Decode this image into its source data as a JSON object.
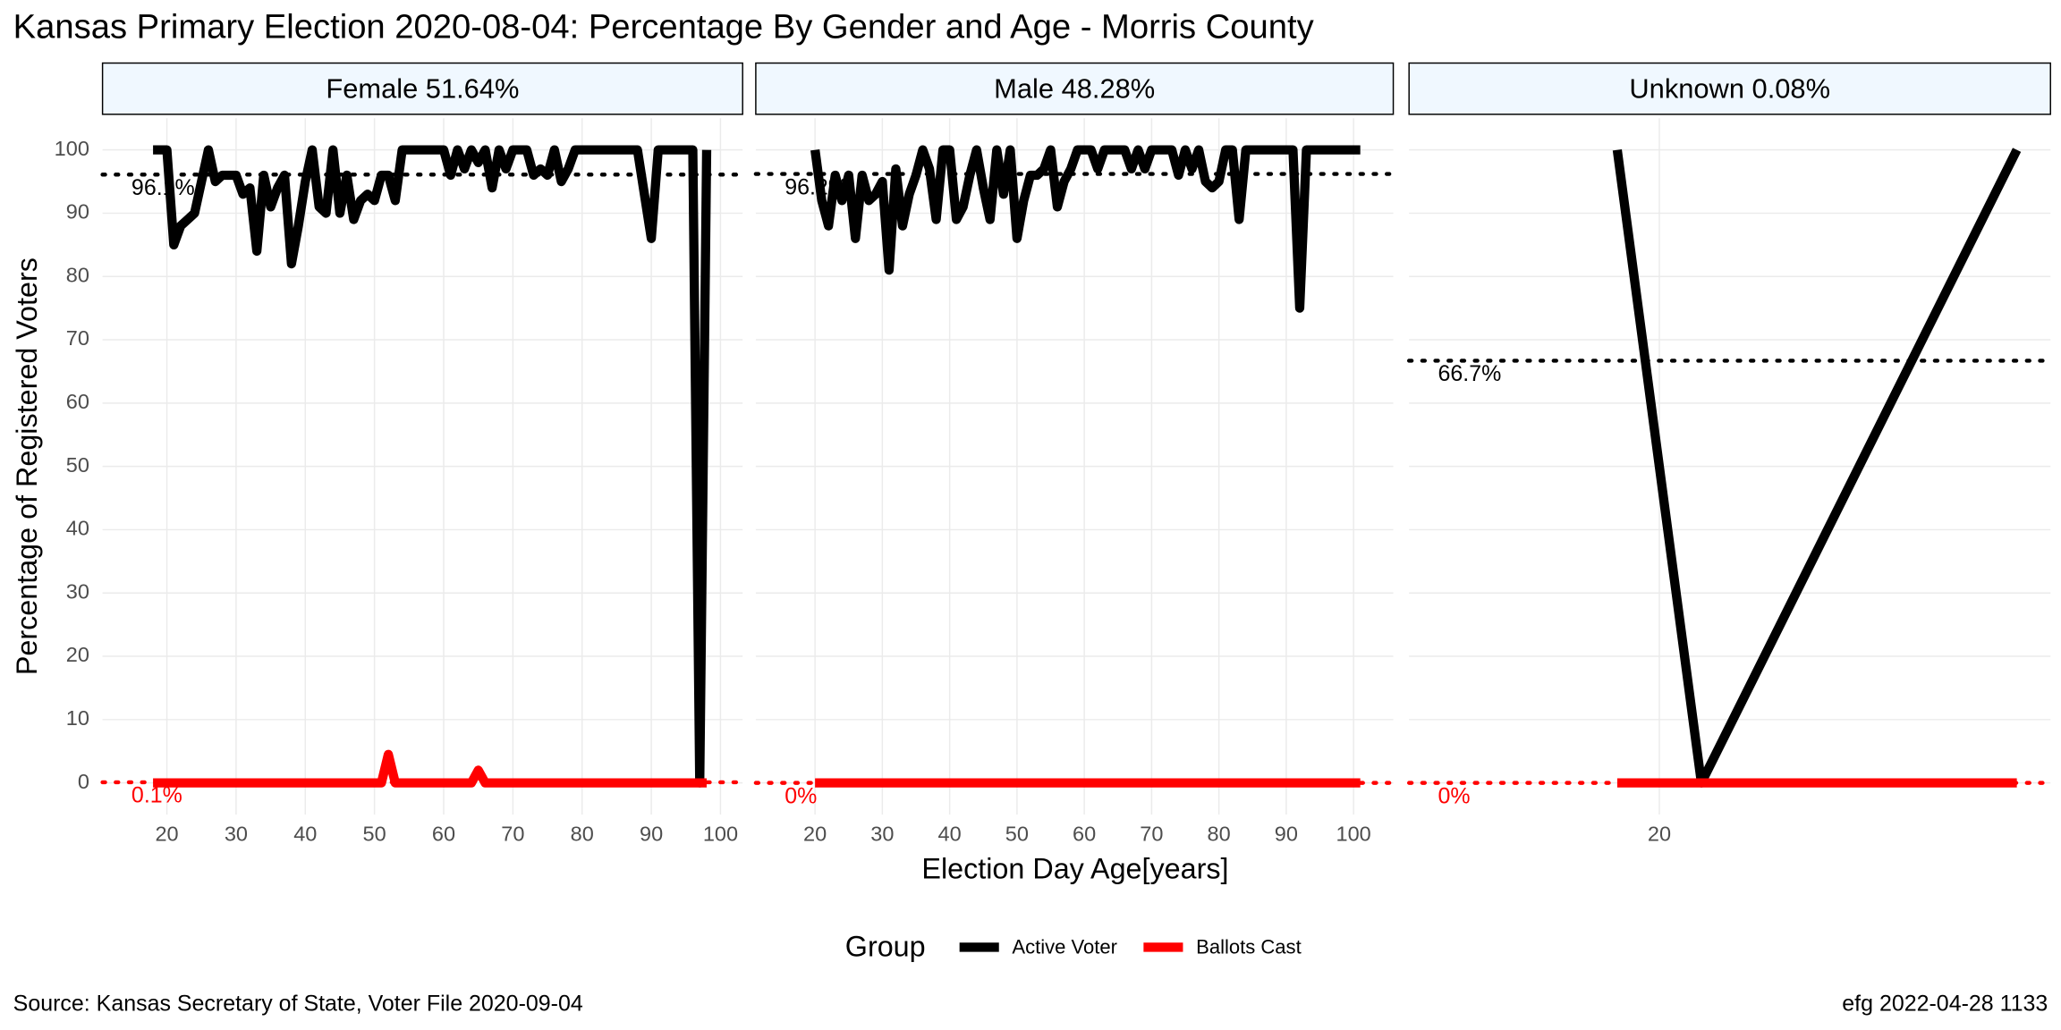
{
  "figure": {
    "title": "Kansas Primary Election 2020-08-04:  Percentage By Gender and Age - Morris County",
    "x_label": "Election Day Age[years]",
    "y_label": "Percentage of Registered Voters",
    "legend_title": "Group",
    "source": "Source:  Kansas Secretary of State, Voter File  2020-09-04",
    "stamp": "efg 2022-04-28 1133"
  },
  "chart_data": [
    {
      "type": "line",
      "title": "Female 51.64%",
      "x": [
        18,
        19,
        20,
        21,
        22,
        23,
        24,
        25,
        26,
        27,
        28,
        29,
        30,
        31,
        32,
        33,
        34,
        35,
        36,
        37,
        38,
        39,
        40,
        41,
        42,
        43,
        44,
        45,
        46,
        47,
        48,
        49,
        50,
        51,
        52,
        53,
        54,
        55,
        56,
        57,
        58,
        59,
        60,
        61,
        62,
        63,
        64,
        65,
        66,
        67,
        68,
        69,
        70,
        71,
        72,
        73,
        74,
        75,
        76,
        77,
        78,
        79,
        80,
        81,
        82,
        83,
        84,
        85,
        86,
        87,
        88,
        89,
        90,
        91,
        92,
        93,
        94,
        95,
        96,
        97,
        98
      ],
      "series": [
        {
          "name": "Active Voter",
          "color": "#000000",
          "values": [
            100,
            100,
            100,
            85,
            88,
            89,
            90,
            95,
            100,
            95,
            96,
            96,
            96,
            93,
            94,
            84,
            96,
            91,
            94,
            96,
            82,
            88,
            95,
            100,
            91,
            90,
            100,
            90,
            96,
            89,
            92,
            93,
            92,
            96,
            96,
            92,
            100,
            100,
            100,
            100,
            100,
            100,
            100,
            96,
            100,
            97,
            100,
            98,
            100,
            94,
            100,
            97,
            100,
            100,
            100,
            96,
            97,
            96,
            100,
            95,
            97,
            100,
            100,
            100,
            100,
            100,
            100,
            100,
            100,
            100,
            100,
            93,
            86,
            100,
            100,
            100,
            100,
            100,
            100,
            0,
            100
          ]
        },
        {
          "name": "Ballots Cast",
          "color": "#ff0000",
          "values": [
            0,
            0,
            0,
            0,
            0,
            0,
            0,
            0,
            0,
            0,
            0,
            0,
            0,
            0,
            0,
            0,
            0,
            0,
            0,
            0,
            0,
            0,
            0,
            0,
            0,
            0,
            0,
            0,
            0,
            0,
            0,
            0,
            0,
            0,
            4.5,
            0,
            0,
            0,
            0,
            0,
            0,
            0,
            0,
            0,
            0,
            0,
            0,
            2,
            0,
            0,
            0,
            0,
            0,
            0,
            0,
            0,
            0,
            0,
            0,
            0,
            0,
            0,
            0,
            0,
            0,
            0,
            0,
            0,
            0,
            0,
            0,
            0,
            0,
            0,
            0,
            0,
            0,
            0,
            0,
            0,
            0
          ]
        }
      ],
      "reference_lines": [
        {
          "value": 96.1,
          "label": "96.1%",
          "color": "#000000"
        },
        {
          "value": 0.1,
          "label": "0.1%",
          "color": "#ff0000"
        }
      ],
      "xlim": [
        10.7,
        103.2
      ],
      "xticks": [
        20,
        30,
        40,
        50,
        60,
        70,
        80,
        90,
        100
      ],
      "ylim": [
        -5,
        105
      ],
      "yticks": [
        0,
        10,
        20,
        30,
        40,
        50,
        60,
        70,
        80,
        90,
        100
      ],
      "grid": true
    },
    {
      "type": "line",
      "title": "Male 48.28%",
      "x": [
        20,
        21,
        22,
        23,
        24,
        25,
        26,
        27,
        28,
        29,
        30,
        31,
        32,
        33,
        34,
        35,
        36,
        37,
        38,
        39,
        40,
        41,
        42,
        43,
        44,
        45,
        46,
        47,
        48,
        49,
        50,
        51,
        52,
        53,
        54,
        55,
        56,
        57,
        58,
        59,
        60,
        61,
        62,
        63,
        64,
        65,
        66,
        67,
        68,
        69,
        70,
        71,
        72,
        73,
        74,
        75,
        76,
        77,
        78,
        79,
        80,
        81,
        82,
        83,
        84,
        85,
        86,
        87,
        88,
        89,
        90,
        91,
        92,
        93,
        94,
        95,
        96,
        97,
        98,
        99,
        100,
        101
      ],
      "series": [
        {
          "name": "Active Voter",
          "color": "#000000",
          "values": [
            100,
            92,
            88,
            96,
            92,
            96,
            86,
            96,
            92,
            93,
            95,
            81,
            97,
            88,
            93,
            96,
            100,
            97,
            89,
            100,
            100,
            89,
            91,
            96,
            100,
            94,
            89,
            100,
            93,
            100,
            86,
            92,
            96,
            96,
            97,
            100,
            91,
            95,
            97,
            100,
            100,
            100,
            97,
            100,
            100,
            100,
            100,
            97,
            100,
            97,
            100,
            100,
            100,
            100,
            96,
            100,
            97,
            100,
            95,
            94,
            95,
            100,
            100,
            89,
            100,
            100,
            100,
            100,
            100,
            100,
            100,
            100,
            75,
            100,
            100,
            100,
            100,
            100,
            100,
            100,
            100,
            100
          ]
        },
        {
          "name": "Ballots Cast",
          "color": "#ff0000",
          "values": [
            0,
            0,
            0,
            0,
            0,
            0,
            0,
            0,
            0,
            0,
            0,
            0,
            0,
            0,
            0,
            0,
            0,
            0,
            0,
            0,
            0,
            0,
            0,
            0,
            0,
            0,
            0,
            0,
            0,
            0,
            0,
            0,
            0,
            0,
            0,
            0,
            0,
            0,
            0,
            0,
            0,
            0,
            0,
            0,
            0,
            0,
            0,
            0,
            0,
            0,
            0,
            0,
            0,
            0,
            0,
            0,
            0,
            0,
            0,
            0,
            0,
            0,
            0,
            0,
            0,
            0,
            0,
            0,
            0,
            0,
            0,
            0,
            0,
            0,
            0,
            0,
            0,
            0,
            0,
            0,
            0,
            0
          ]
        }
      ],
      "reference_lines": [
        {
          "value": 96.2,
          "label": "96.2%",
          "color": "#000000"
        },
        {
          "value": 0,
          "label": "0%",
          "color": "#ff0000"
        }
      ],
      "xlim": [
        11.2,
        105.9
      ],
      "xticks": [
        20,
        30,
        40,
        50,
        60,
        70,
        80,
        90,
        100
      ],
      "ylim": [
        -5,
        105
      ],
      "yticks": [
        0,
        10,
        20,
        30,
        40,
        50,
        60,
        70,
        80,
        90,
        100
      ],
      "grid": true
    },
    {
      "type": "line",
      "title": "Unknown 0.08%",
      "x": [
        18,
        22,
        37
      ],
      "series": [
        {
          "name": "Active Voter",
          "color": "#000000",
          "values": [
            100,
            0,
            100
          ]
        },
        {
          "name": "Ballots Cast",
          "color": "#ff0000",
          "values": [
            0,
            0,
            0
          ]
        }
      ],
      "reference_lines": [
        {
          "value": 66.7,
          "label": "66.7%",
          "color": "#000000"
        },
        {
          "value": 0,
          "label": "0%",
          "color": "#ff0000"
        }
      ],
      "xlim": [
        8.1,
        38.6
      ],
      "xticks": [
        20
      ],
      "ylim": [
        -5,
        105
      ],
      "yticks": [
        0,
        10,
        20,
        30,
        40,
        50,
        60,
        70,
        80,
        90,
        100
      ],
      "grid": true
    }
  ]
}
